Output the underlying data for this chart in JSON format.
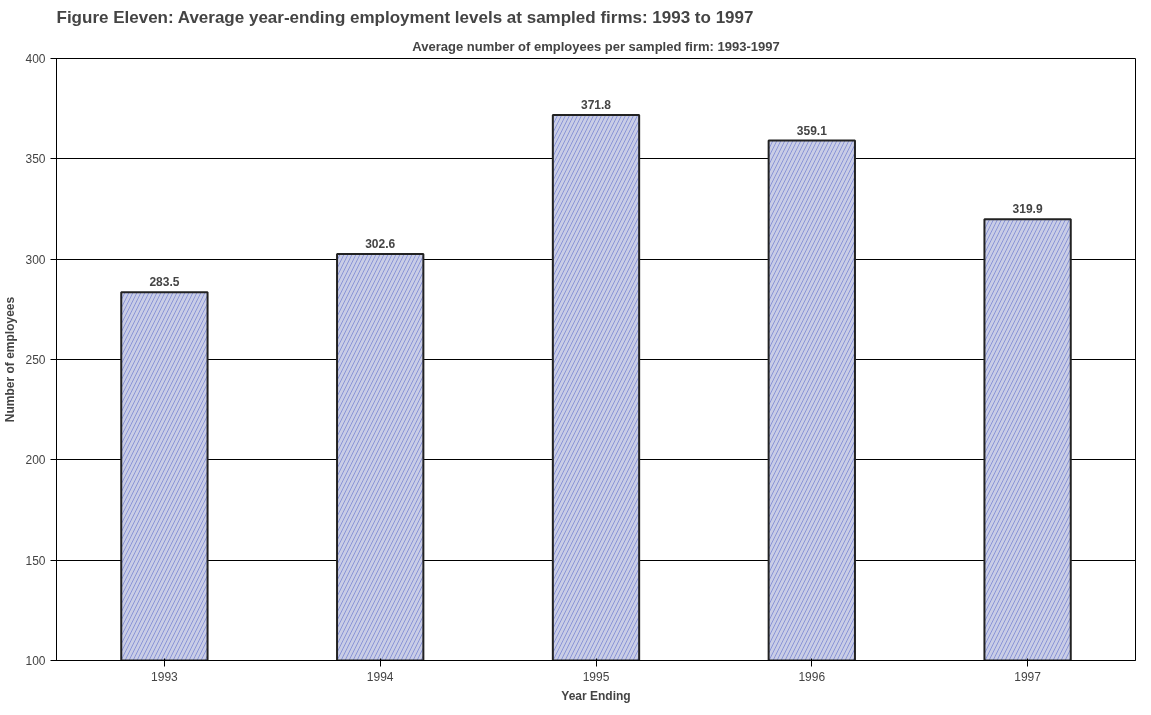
{
  "chart_data": {
    "type": "bar",
    "title": "Figure Eleven: Average year-ending employment levels at sampled firms: 1993 to 1997",
    "subtitle": "Average number of employees per sampled firm: 1993-1997",
    "xlabel": "Year Ending",
    "ylabel": "Number of employees",
    "categories": [
      "1993",
      "1994",
      "1995",
      "1996",
      "1997"
    ],
    "values": [
      283.5,
      302.6,
      371.8,
      359.1,
      319.9
    ],
    "color": "#c9cde6",
    "ylim": [
      100,
      400
    ],
    "yticks": [
      100,
      150,
      200,
      250,
      300,
      350,
      400
    ],
    "grid": "y",
    "data_labels": true
  }
}
